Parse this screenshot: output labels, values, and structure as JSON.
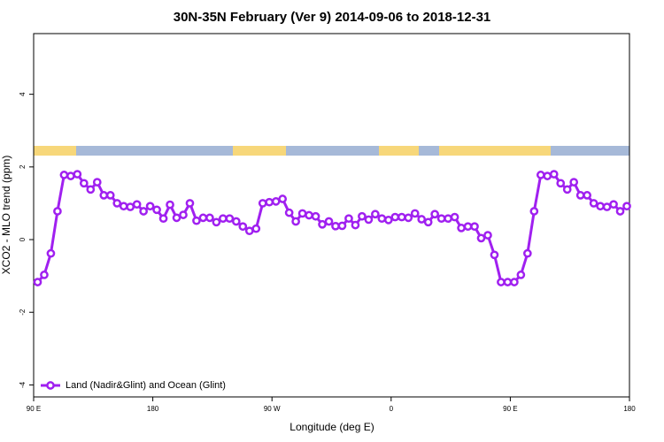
{
  "chart_data": {
    "type": "line",
    "title": "30N-35N February (Ver 9)   2014-09-06 to 2018-12-31",
    "x_label": "Longitude (deg E)",
    "y_label": "XCO2 - MLO trend (ppm)",
    "xlim": [
      90,
      540
    ],
    "ylim": [
      -4.33,
      5.67
    ],
    "xticks": [
      {
        "value": 90,
        "label": "90 E"
      },
      {
        "value": 180,
        "label": "180"
      },
      {
        "value": 270,
        "label": "90 W"
      },
      {
        "value": 360,
        "label": "0"
      },
      {
        "value": 450,
        "label": "90 E"
      },
      {
        "value": 540,
        "label": "180"
      }
    ],
    "yticks": [
      -4,
      -2,
      0,
      2,
      4
    ],
    "legend": "bottom-left",
    "x": [
      93,
      98,
      103,
      108,
      113,
      118,
      123,
      128,
      133,
      138,
      143,
      148,
      153,
      158,
      163,
      168,
      173,
      178,
      183,
      188,
      193,
      198,
      203,
      208,
      213,
      218,
      223,
      228,
      233,
      238,
      243,
      248,
      253,
      258,
      263,
      268,
      273,
      278,
      283,
      288,
      293,
      298,
      303,
      308,
      313,
      318,
      323,
      328,
      333,
      338,
      343,
      348,
      353,
      358,
      363,
      368,
      373,
      378,
      383,
      388,
      393,
      398,
      403,
      408,
      413,
      418,
      423,
      428,
      433,
      438,
      443,
      448,
      453,
      458,
      463,
      468,
      473,
      478,
      483,
      488,
      493,
      498,
      503,
      508,
      513,
      518,
      523,
      528,
      533,
      538
    ],
    "series": [
      {
        "name": "Land (Nadir&Glint) and Ocean (Glint)",
        "color": "#a020f0",
        "values": [
          -1.17,
          -0.97,
          -0.38,
          0.78,
          1.78,
          1.75,
          1.8,
          1.55,
          1.38,
          1.58,
          1.22,
          1.22,
          1.0,
          0.92,
          0.9,
          0.97,
          0.78,
          0.92,
          0.82,
          0.58,
          0.96,
          0.6,
          0.68,
          1.0,
          0.52,
          0.6,
          0.6,
          0.48,
          0.58,
          0.58,
          0.5,
          0.36,
          0.24,
          0.3,
          1.0,
          1.03,
          1.05,
          1.12,
          0.74,
          0.5,
          0.72,
          0.67,
          0.64,
          0.42,
          0.5,
          0.37,
          0.38,
          0.58,
          0.4,
          0.64,
          0.55,
          0.7,
          0.58,
          0.54,
          0.62,
          0.62,
          0.6,
          0.72,
          0.56,
          0.48,
          0.7,
          0.58,
          0.58,
          0.62,
          0.32,
          0.36,
          0.36,
          0.04,
          0.12,
          -0.42,
          -1.17,
          -1.17,
          -1.17,
          -0.97,
          -0.38,
          0.78,
          1.78,
          1.75,
          1.8,
          1.55,
          1.38,
          1.58,
          1.22,
          1.22,
          1.0,
          0.92,
          0.9,
          0.97,
          0.78,
          0.92
        ]
      }
    ]
  }
}
